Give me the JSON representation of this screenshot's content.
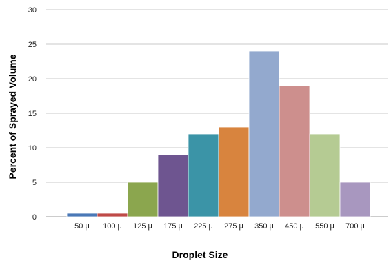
{
  "chart_data": {
    "type": "bar",
    "title": "",
    "xlabel": "Droplet Size",
    "ylabel": "Percent of  Sprayed  Volume",
    "categories": [
      "50 μ",
      "100 μ",
      "125 μ",
      "175 μ",
      "225 μ",
      "275 μ",
      "350 μ",
      "450 μ",
      "550 μ",
      "700 μ"
    ],
    "values": [
      0.5,
      0.5,
      5,
      9,
      12,
      13,
      24,
      19,
      12,
      5
    ],
    "colors": [
      "#4a78b6",
      "#bf4a47",
      "#8ba64e",
      "#6e5590",
      "#3b94a7",
      "#d8843e",
      "#93a9ce",
      "#cd8f8d",
      "#b5cb93",
      "#a897bf"
    ],
    "ylim": [
      0,
      30
    ],
    "yticks": [
      0,
      5,
      10,
      15,
      20,
      25,
      30
    ],
    "grid": true,
    "legend": "none"
  }
}
